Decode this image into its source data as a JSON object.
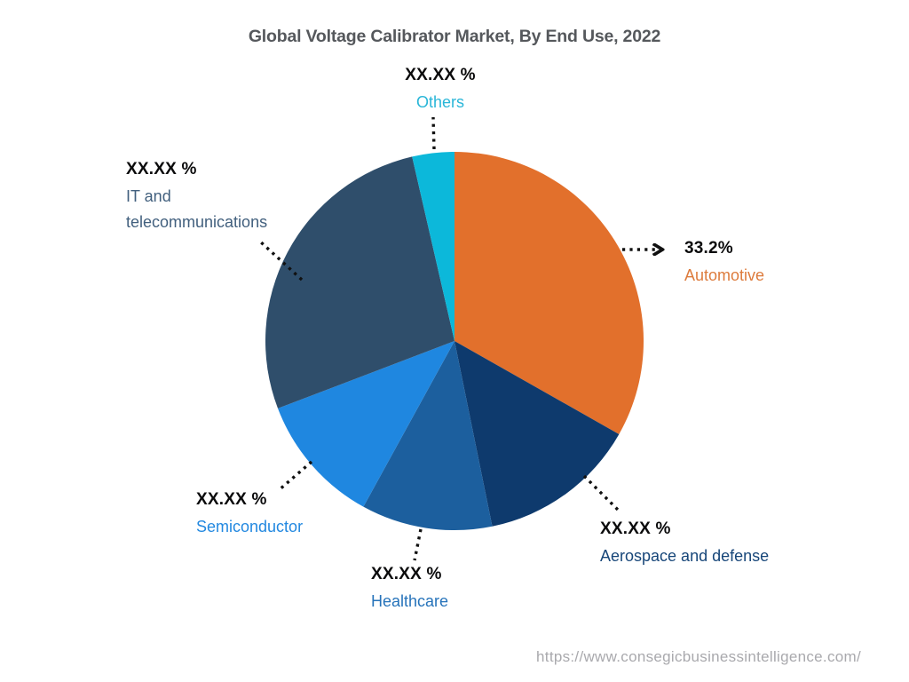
{
  "title": "Global Voltage Calibrator Market, By End Use, 2022",
  "source_url": "https://www.consegicbusinessintelligence.com/",
  "chart_data": {
    "type": "pie",
    "title": "Global Voltage Calibrator Market, By End Use, 2022",
    "start_angle_deg": 0,
    "direction": "clockwise",
    "legend": "none",
    "slices": [
      {
        "label": "Automotive",
        "display_value": "33.2%",
        "value_pct": 33.2,
        "color": "#E2702C",
        "label_color": "#DD7B3C"
      },
      {
        "label": "Aerospace and defense",
        "display_value": "XX.XX %",
        "value_pct": 13.6,
        "color": "#0E3A6D",
        "label_color": "#174679"
      },
      {
        "label": "Healthcare",
        "display_value": "XX.XX %",
        "value_pct": 11.2,
        "color": "#1C5F9E",
        "label_color": "#2673BA"
      },
      {
        "label": "Semiconductor",
        "display_value": "XX.XX %",
        "value_pct": 11.2,
        "color": "#1F87E0",
        "label_color": "#2288E0"
      },
      {
        "label": "IT and telecommunications",
        "display_value": "XX.XX %",
        "value_pct": 27.2,
        "color": "#2F4E6B",
        "label_color": "#42607E"
      },
      {
        "label": "Others",
        "display_value": "XX.XX %",
        "value_pct": 3.6,
        "color": "#0CB8DA",
        "label_color": "#29B6D8"
      }
    ]
  }
}
